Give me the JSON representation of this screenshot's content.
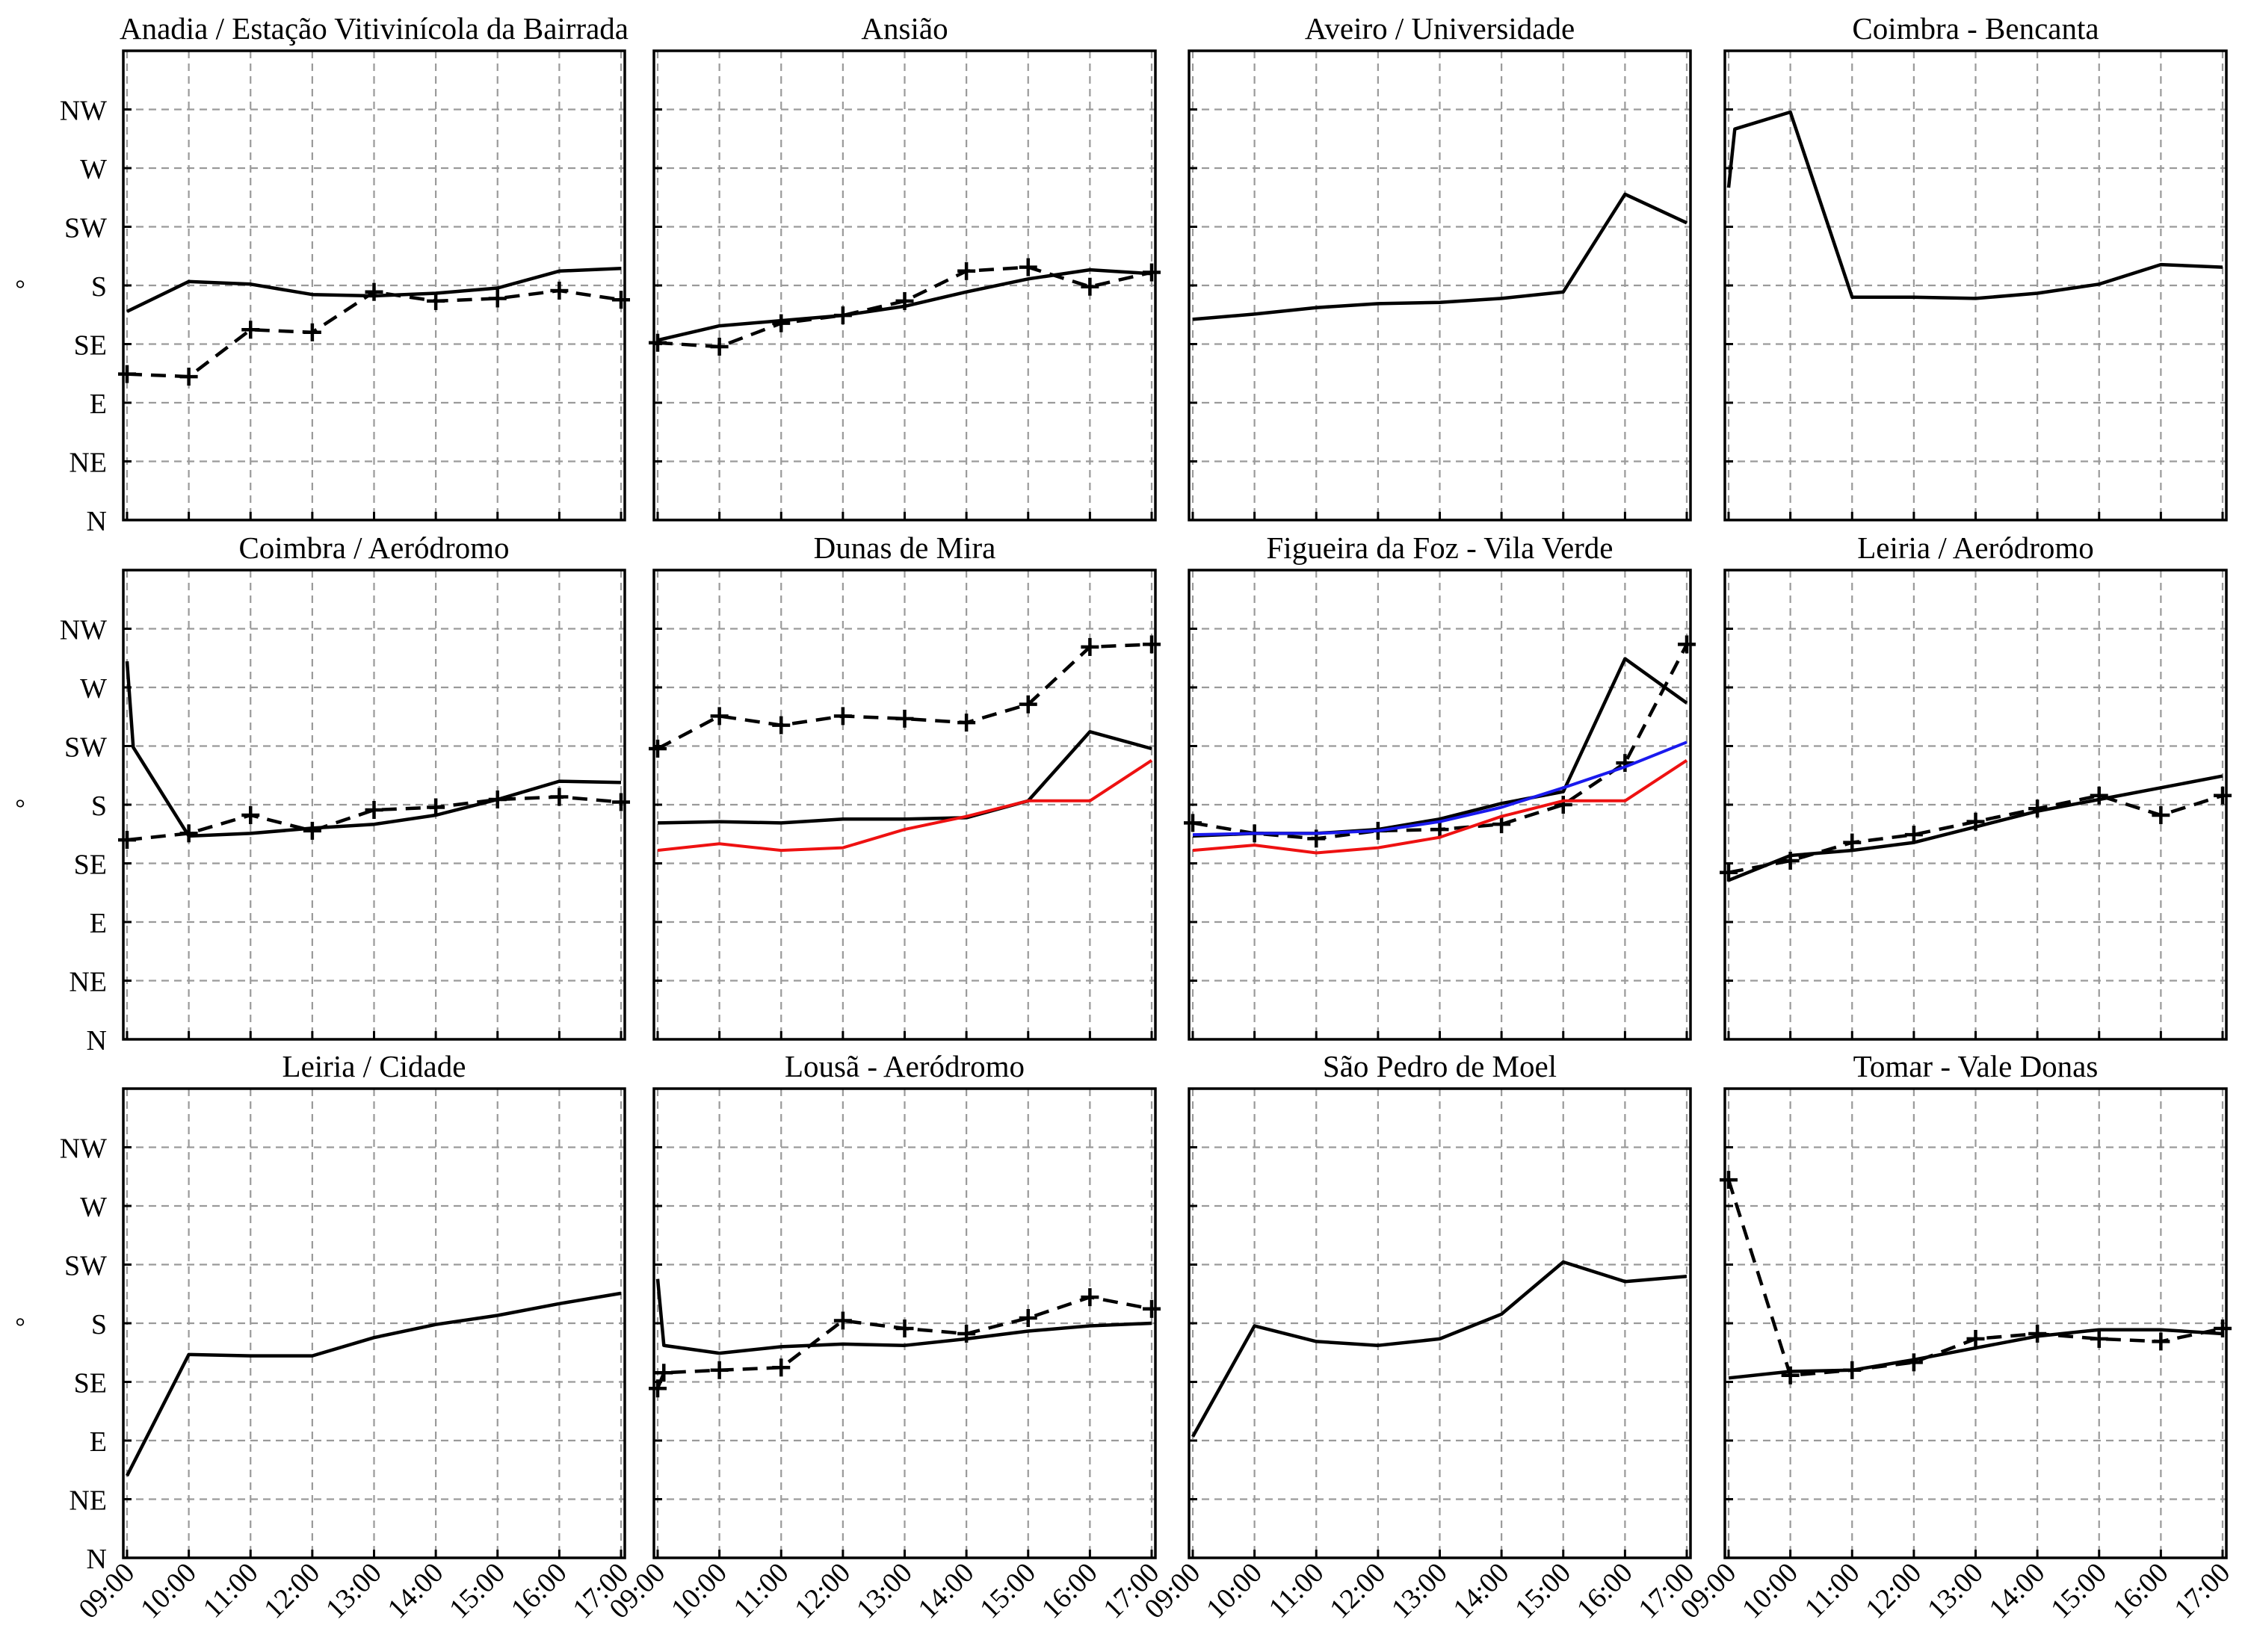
{
  "chart_data": {
    "type": "line",
    "layout": "3x4 small multiples",
    "x": [
      "09:00",
      "10:00",
      "11:00",
      "12:00",
      "13:00",
      "14:00",
      "15:00",
      "16:00",
      "17:00"
    ],
    "y_ticks": [
      "N",
      "NE",
      "E",
      "SE",
      "S",
      "SW",
      "W",
      "NW"
    ],
    "ylabel": "°",
    "ylim": [
      0,
      360
    ],
    "grid": true,
    "colors": {
      "solid": "#000000",
      "dashed": "#000000",
      "red": "#ee1111",
      "blue": "#1a1aee"
    },
    "panels": [
      {
        "title": "Anadia / Estação Vitivinícola da Bairrada",
        "series": [
          {
            "name": "solid",
            "style": "solid",
            "values": [
              160,
              183,
              181,
              173,
              172,
              174,
              178,
              191,
              193
            ]
          },
          {
            "name": "dashed",
            "style": "dashed-plus",
            "values": [
              112,
              110,
              146,
              144,
              175,
              168,
              170,
              176,
              169
            ]
          }
        ]
      },
      {
        "title": "Ansião",
        "series": [
          {
            "name": "solid",
            "style": "solid",
            "values": [
              138,
              149,
              153,
              157,
              164,
              175,
              185,
              192,
              189
            ]
          },
          {
            "name": "dashed",
            "style": "dashed-plus",
            "values": [
              136,
              133,
              151,
              157,
              168,
              191,
              194,
              179,
              190
            ]
          }
        ]
      },
      {
        "title": "Aveiro / Universidade",
        "series": [
          {
            "name": "solid",
            "style": "solid",
            "values": [
              154,
              158,
              163,
              166,
              167,
              170,
              175,
              250,
              228
            ]
          }
        ]
      },
      {
        "title": "Coimbra - Bencanta",
        "series": [
          {
            "name": "solid",
            "style": "solid",
            "values": [
              255,
              300,
              313,
              171,
              171,
              170,
              174,
              181,
              196,
              194
            ],
            "x_index": [
              0,
              0.1,
              1,
              2,
              3,
              4,
              5,
              6,
              7,
              8
            ]
          }
        ]
      },
      {
        "title": "Coimbra / Aeródromo",
        "series": [
          {
            "name": "solid",
            "style": "solid",
            "values": [
              290,
              224,
              156,
              158,
              162,
              165,
              172,
              184,
              198,
              197
            ],
            "x_index": [
              0,
              0.1,
              1,
              2,
              3,
              4,
              5,
              6,
              7,
              8
            ]
          },
          {
            "name": "dashed",
            "style": "dashed-plus",
            "values": [
              153,
              158,
              172,
              160,
              176,
              178,
              184,
              186,
              182
            ]
          }
        ]
      },
      {
        "title": "Dunas de Mira",
        "series": [
          {
            "name": "solid",
            "style": "solid",
            "values": [
              166,
              167,
              166,
              169,
              169,
              170,
              183,
              236,
              223
            ]
          },
          {
            "name": "dashed",
            "style": "dashed-plus",
            "values": [
              223,
              248,
              241,
              248,
              246,
              243,
              257,
              301,
              303
            ]
          },
          {
            "name": "red",
            "style": "red",
            "values": [
              145,
              150,
              145,
              147,
              161,
              171,
              183,
              183,
              214
            ]
          }
        ]
      },
      {
        "title": "Figueira da Foz - Vila Verde",
        "series": [
          {
            "name": "solid",
            "style": "solid",
            "values": [
              156,
              158,
              158,
              161,
              169,
              181,
              190,
              292,
              258
            ]
          },
          {
            "name": "dashed",
            "style": "dashed-plus",
            "values": [
              166,
              158,
              154,
              160,
              161,
              165,
              180,
              212,
              303
            ]
          },
          {
            "name": "red",
            "style": "red",
            "values": [
              145,
              149,
              143,
              147,
              155,
              171,
              183,
              183,
              214
            ]
          },
          {
            "name": "blue",
            "style": "blue",
            "values": [
              157,
              158,
              158,
              160,
              167,
              178,
              193,
              209,
              228
            ]
          }
        ]
      },
      {
        "title": "Leiria / Aeródromo",
        "series": [
          {
            "name": "solid",
            "style": "solid",
            "values": [
              122,
              141,
              145,
              151,
              163,
              175,
              184,
              193,
              202
            ]
          },
          {
            "name": "dashed",
            "style": "dashed-plus",
            "values": [
              128,
              137,
              151,
              157,
              167,
              177,
              187,
              172,
              187
            ]
          }
        ]
      },
      {
        "title": "Leiria / Cidade",
        "series": [
          {
            "name": "solid",
            "style": "solid",
            "values": [
              63,
              156,
              155,
              155,
              169,
              179,
              186,
              195,
              203
            ],
            "x_index": [
              0,
              1,
              2,
              3,
              4,
              5,
              6,
              7,
              8
            ]
          }
        ]
      },
      {
        "title": "Lousã - Aeródromo",
        "series": [
          {
            "name": "solid",
            "style": "solid",
            "values": [
              214,
              163,
              157,
              162,
              164,
              163,
              168,
              174,
              178,
              180
            ],
            "x_index": [
              0,
              0.1,
              1,
              2,
              3,
              4,
              5,
              6,
              7,
              8
            ]
          },
          {
            "name": "dashed",
            "style": "dashed-plus",
            "values": [
              130,
              142,
              144,
              146,
              182,
              176,
              172,
              184,
              200,
              191
            ],
            "x_index": [
              0,
              0.1,
              1,
              2,
              3,
              4,
              5,
              6,
              7,
              8
            ]
          }
        ]
      },
      {
        "title": "São Pedro de Moel",
        "series": [
          {
            "name": "solid",
            "style": "solid",
            "values": [
              93,
              178,
              166,
              163,
              168,
              187,
              227,
              212,
              216
            ]
          }
        ]
      },
      {
        "title": "Tomar - Vale Donas",
        "series": [
          {
            "name": "solid",
            "style": "solid",
            "values": [
              138,
              143,
              144,
              152,
              161,
              170,
              175,
              175,
              172
            ]
          },
          {
            "name": "dashed",
            "style": "dashed-plus",
            "values": [
              290,
              140,
              144,
              150,
              168,
              172,
              168,
              166,
              176
            ]
          }
        ]
      }
    ]
  }
}
